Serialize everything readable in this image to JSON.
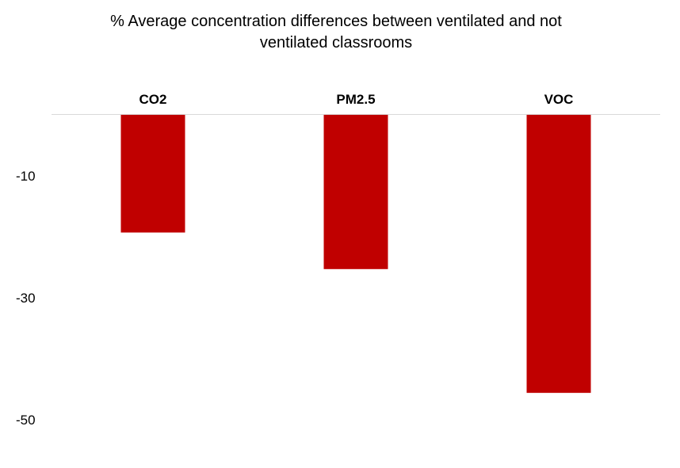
{
  "chart_data": {
    "type": "bar",
    "title_lines": [
      "% Average concentration differences between ventilated and not",
      "ventilated classrooms"
    ],
    "categories": [
      "CO2",
      "PM2.5",
      "VOC"
    ],
    "values": [
      -19.3,
      -25.3,
      -45.6
    ],
    "ytick_labels": [
      "-10",
      "-30",
      "-50"
    ],
    "ytick_values": [
      -10,
      -30,
      -50
    ],
    "ylim": [
      -55,
      0
    ],
    "xlabel": "",
    "ylabel": "",
    "grid": false,
    "legend": "none",
    "bar_color": "#c00000",
    "zero_line_color": "#d9d9d9"
  }
}
